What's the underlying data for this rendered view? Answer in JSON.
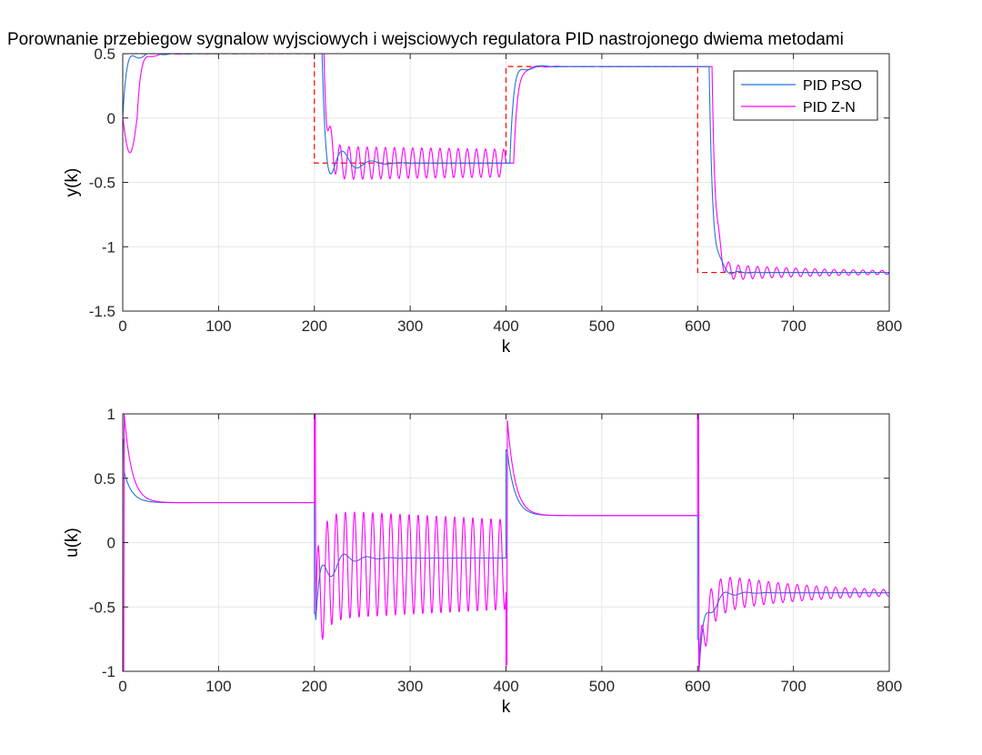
{
  "figure": {
    "title": "Porownanie przebiegow sygnalow wyjsciowych i wejsciowych regulatora PID nastrojonego dwiema metodami"
  },
  "colors": {
    "pso": "#1f77d4",
    "zn": "#ff00ff",
    "reference": "#ff0000",
    "grid": "#e6e6e6",
    "axis": "#262626",
    "background": "#ffffff"
  },
  "chart_data": [
    {
      "type": "line",
      "ylabel": "y(k)",
      "xlabel": "k",
      "xlim": [
        0,
        800
      ],
      "ylim": [
        -1.5,
        0.5
      ],
      "xticks": [
        0,
        100,
        200,
        300,
        400,
        500,
        600,
        700,
        800
      ],
      "yticks": [
        0.5,
        0,
        -0.5,
        -1,
        -1.5
      ],
      "xtick_labels": [
        "0",
        "100",
        "200",
        "300",
        "400",
        "500",
        "600",
        "700",
        "800"
      ],
      "ytick_labels": [
        "0.5",
        "0",
        "-0.5",
        "-1",
        "-1.5"
      ],
      "grid": true,
      "legend": {
        "position": "top-right",
        "entries": [
          "PID PSO",
          "PID Z-N"
        ]
      },
      "reference": {
        "name": "reference",
        "style": "dashed",
        "steps": [
          {
            "from": 0,
            "to": 200,
            "value": 0.5
          },
          {
            "from": 200,
            "to": 400,
            "value": -0.35
          },
          {
            "from": 400,
            "to": 600,
            "value": 0.4
          },
          {
            "from": 600,
            "to": 800,
            "value": -1.2
          }
        ]
      },
      "series": [
        {
          "name": "PID PSO",
          "segments": [
            {
              "from": 0,
              "to": 200,
              "start": 0,
              "target": 0.5,
              "overshoot": 0.07,
              "settle": 20,
              "period": 25,
              "pre_dip": 0
            },
            {
              "from": 200,
              "to": 400,
              "start": 0.5,
              "target": -0.35,
              "overshoot": 0.3,
              "settle": 18,
              "period": 30,
              "delay": 8,
              "pre_dip": 0
            },
            {
              "from": 400,
              "to": 600,
              "start": -0.35,
              "target": 0.4,
              "overshoot": 0.07,
              "settle": 15,
              "period": 28,
              "delay": 4,
              "pre_dip": 0
            },
            {
              "from": 600,
              "to": 800,
              "start": 0.4,
              "target": -1.2,
              "overshoot": 0.1,
              "settle": 12,
              "period": 18,
              "delay": 12,
              "pre_dip": 0
            }
          ]
        },
        {
          "name": "PID Z-N",
          "segments": [
            {
              "from": 0,
              "to": 200,
              "start": 0,
              "target": 0.5,
              "overshoot": 0.05,
              "settle": 15,
              "period": 25,
              "delay": 15,
              "pre_dip": -0.27
            },
            {
              "from": 200,
              "to": 400,
              "start": 0.5,
              "target": -0.35,
              "overshoot": 0.13,
              "settle": 1000,
              "period": 9.5,
              "delay": 10,
              "pre_dip": 0
            },
            {
              "from": 400,
              "to": 600,
              "start": -0.35,
              "target": 0.4,
              "overshoot": 0.02,
              "settle": 20,
              "period": 20,
              "delay": 8,
              "pre_dip": 0
            },
            {
              "from": 600,
              "to": 800,
              "start": 0.4,
              "target": -1.2,
              "overshoot": 0.07,
              "settle": 120,
              "period": 10,
              "delay": 15,
              "pre_dip": 0
            }
          ]
        }
      ]
    },
    {
      "type": "line",
      "ylabel": "u(k)",
      "xlabel": "k",
      "xlim": [
        0,
        800
      ],
      "ylim": [
        -1,
        1
      ],
      "xticks": [
        0,
        100,
        200,
        300,
        400,
        500,
        600,
        700,
        800
      ],
      "yticks": [
        1,
        0.5,
        0,
        -0.5,
        -1
      ],
      "xtick_labels": [
        "0",
        "100",
        "200",
        "300",
        "400",
        "500",
        "600",
        "700",
        "800"
      ],
      "ytick_labels": [
        "1",
        "0.5",
        "0",
        "-0.5",
        "-1"
      ],
      "grid": true,
      "series": [
        {
          "name": "PID PSO",
          "segments": [
            {
              "from": 0,
              "to": 200,
              "spike": 0.8,
              "start": 0.55,
              "target": 0.31,
              "overshoot": 0.0,
              "settle": 10,
              "period": 20
            },
            {
              "from": 200,
              "to": 400,
              "spike": -0.55,
              "start": -0.6,
              "target": -0.12,
              "overshoot": 0.22,
              "settle": 18,
              "period": 24
            },
            {
              "from": 400,
              "to": 600,
              "spike": 0.72,
              "start": 0.7,
              "target": 0.21,
              "overshoot": 0.0,
              "settle": 10,
              "period": 20
            },
            {
              "from": 600,
              "to": 800,
              "spike": -0.75,
              "start": -1.0,
              "target": -0.39,
              "overshoot": 0.15,
              "settle": 15,
              "period": 22
            }
          ]
        },
        {
          "name": "PID Z-N",
          "segments": [
            {
              "from": 0,
              "to": 200,
              "spike": -1.0,
              "start": 1.0,
              "target": 0.31,
              "overshoot": 0.0,
              "settle": 12,
              "period": 20
            },
            {
              "from": 200,
              "to": 400,
              "spike": 1.0,
              "start": -0.55,
              "target": -0.17,
              "overshoot": 0.43,
              "settle": 1000,
              "period": 9.5
            },
            {
              "from": 400,
              "to": 600,
              "spike": -0.95,
              "start": 0.95,
              "target": 0.21,
              "overshoot": 0.0,
              "settle": 12,
              "period": 20
            },
            {
              "from": 600,
              "to": 800,
              "spike": 1.0,
              "start": -1.0,
              "target": -0.39,
              "overshoot": 0.18,
              "settle": 100,
              "period": 10
            }
          ]
        }
      ]
    }
  ]
}
